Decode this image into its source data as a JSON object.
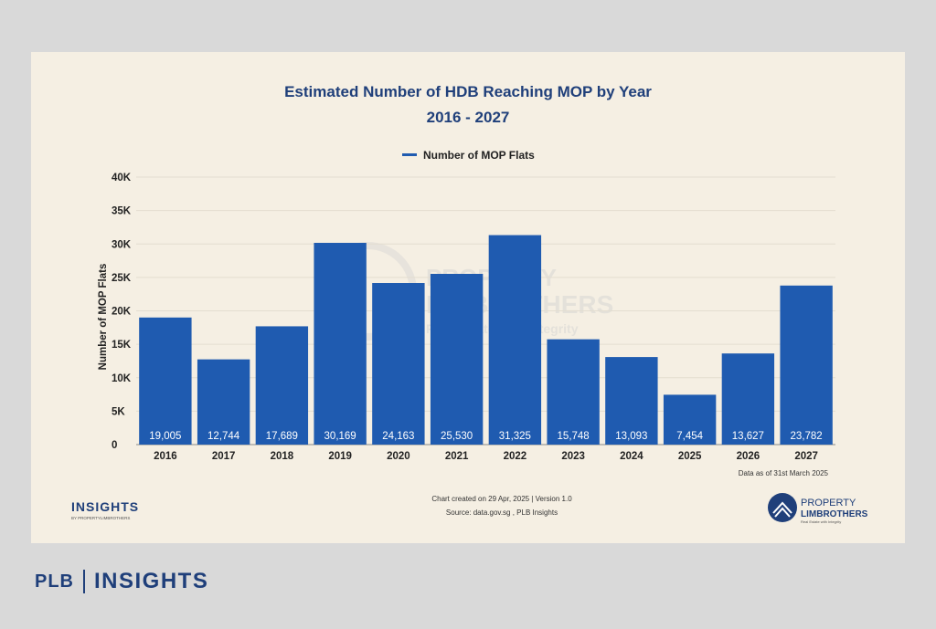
{
  "chart_data": {
    "type": "bar",
    "title": "Estimated Number of HDB Reaching MOP by Year",
    "subtitle": "2016 - 2027",
    "categories": [
      "2016",
      "2017",
      "2018",
      "2019",
      "2020",
      "2021",
      "2022",
      "2023",
      "2024",
      "2025",
      "2026",
      "2027"
    ],
    "series": [
      {
        "name": "Number of MOP Flats",
        "values": [
          19005,
          12744,
          17689,
          30169,
          24163,
          25530,
          31325,
          15748,
          13093,
          7454,
          13627,
          23782
        ],
        "value_labels": [
          "19,005",
          "12,744",
          "17,689",
          "30,169",
          "24,163",
          "25,530",
          "31,325",
          "15,748",
          "13,093",
          "7,454",
          "13,627",
          "23,782"
        ]
      }
    ],
    "ylabel": "Number of MOP Flats",
    "xlabel": "",
    "ylim": [
      0,
      40000
    ],
    "yticks": [
      0,
      5000,
      10000,
      15000,
      20000,
      25000,
      30000,
      35000,
      40000
    ],
    "ytick_labels": [
      "0",
      "5K",
      "10K",
      "15K",
      "20K",
      "25K",
      "30K",
      "35K",
      "40K"
    ],
    "legend_position": "top-center",
    "grid": true,
    "bar_color": "#1f5bb0"
  },
  "notes": {
    "data_as_of": "Data as of 31st March 2025",
    "created": "Chart created on 29 Apr, 2025 | Version 1.0",
    "source": "Source: data.gov.sg , PLB Insights"
  },
  "brand": {
    "insights_logo": "INSIGHTS",
    "insights_sub": "BY PROPERTYLIMBROTHERS",
    "plb_logo_top": "PROPERTY",
    "plb_logo_bottom": "LIMBROTHERS",
    "plb_logo_tagline": "Real Estate with Integrity",
    "watermark_top": "PROPERTY",
    "watermark_bottom": "LIMBROTHERS",
    "watermark_tagline": "Real Estate with Integrity",
    "footer_left": "PLB",
    "footer_right": "INSIGHTS"
  },
  "colors": {
    "title": "#1f3f7a",
    "background": "#f5efe3",
    "page": "#d9d9d9"
  }
}
